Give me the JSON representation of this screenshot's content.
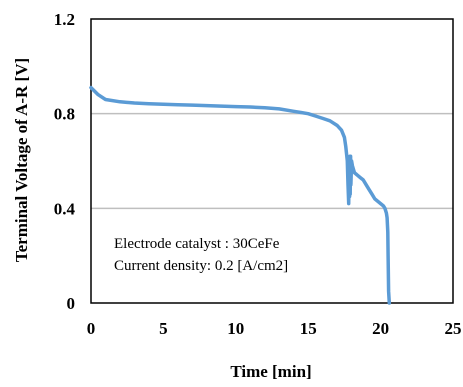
{
  "chart_data": {
    "type": "line",
    "title": "",
    "xlabel": "Time [min]",
    "ylabel": "Terminal Voltage of A-R [V]",
    "xlim": [
      0,
      25
    ],
    "ylim": [
      0,
      1.2
    ],
    "x_ticks": [
      "0",
      "5",
      "10",
      "15",
      "20",
      "25"
    ],
    "y_ticks": [
      "0",
      "0.4",
      "0.8",
      "1.2"
    ],
    "grid": "horizontal",
    "annotations": [
      "Electrode catalyst : 30CeFe",
      "Current density: 0.2 [A/cm2]"
    ],
    "series_color": "#5b9bd5",
    "grid_color": "#bfbfbf",
    "series": [
      {
        "x": [
          0,
          0.5,
          1,
          2,
          3,
          4,
          5,
          6,
          7,
          8,
          9,
          10,
          11,
          12,
          13,
          14,
          14.5,
          15,
          15.5,
          16,
          16.5,
          17,
          17.3,
          17.5,
          17.6,
          17.7,
          17.75,
          17.8,
          17.83,
          17.86,
          17.88,
          17.9,
          17.93,
          17.95,
          18.0,
          18.05,
          18.1,
          18.15,
          18.2,
          18.3,
          18.4,
          18.6,
          18.8,
          19.0,
          19.2,
          19.4,
          19.6,
          19.8,
          20.0,
          20.2,
          20.3,
          20.4,
          20.45,
          20.5,
          20.52,
          20.55,
          20.6
        ],
        "y": [
          0.91,
          0.88,
          0.86,
          0.85,
          0.845,
          0.842,
          0.84,
          0.838,
          0.836,
          0.834,
          0.832,
          0.83,
          0.828,
          0.825,
          0.82,
          0.81,
          0.805,
          0.8,
          0.79,
          0.78,
          0.77,
          0.75,
          0.73,
          0.7,
          0.66,
          0.6,
          0.5,
          0.42,
          0.6,
          0.45,
          0.62,
          0.46,
          0.62,
          0.5,
          0.6,
          0.58,
          0.57,
          0.56,
          0.55,
          0.545,
          0.54,
          0.53,
          0.52,
          0.5,
          0.48,
          0.46,
          0.44,
          0.43,
          0.42,
          0.41,
          0.4,
          0.38,
          0.36,
          0.3,
          0.2,
          0.05,
          0.0
        ]
      }
    ]
  }
}
